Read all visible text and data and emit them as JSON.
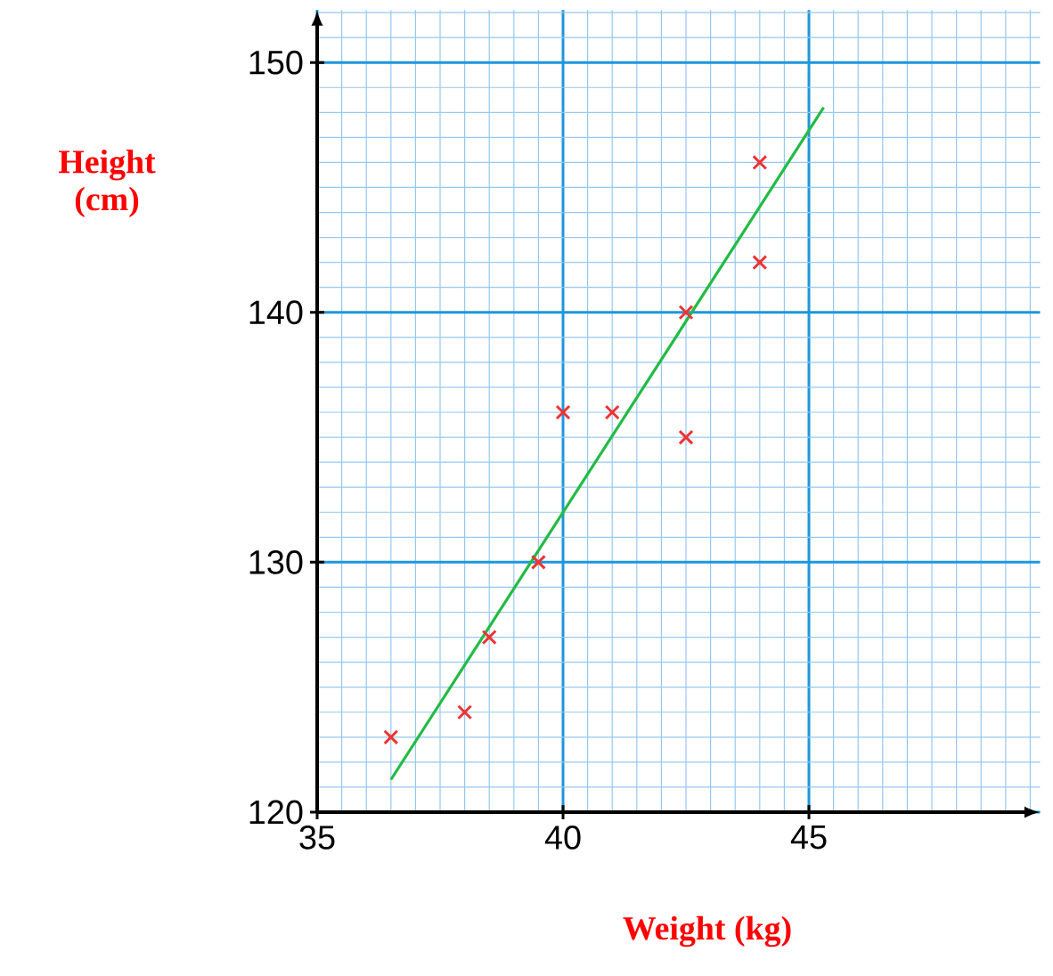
{
  "chart_data": {
    "type": "scatter",
    "xlabel": "Weight (kg)",
    "ylabel": "Height (cm)",
    "xlim": [
      35,
      49.7
    ],
    "ylim": [
      120,
      152.1
    ],
    "xticks": [
      35,
      40,
      45
    ],
    "yticks": [
      120,
      130,
      140,
      150
    ],
    "grid": true,
    "series": [
      {
        "marker": "cross",
        "color": "#ee3333",
        "x": [
          36.5,
          38,
          38.5,
          39.5,
          40,
          41,
          42.5,
          42.5,
          44,
          44
        ],
        "values": [
          123,
          124,
          127,
          130,
          136,
          136,
          135,
          140,
          142,
          146
        ]
      },
      {
        "type": "line",
        "marker": "none",
        "color": "#22bb44",
        "x": [
          36.5,
          45.3
        ],
        "values": [
          121.3,
          148.2
        ]
      }
    ]
  }
}
